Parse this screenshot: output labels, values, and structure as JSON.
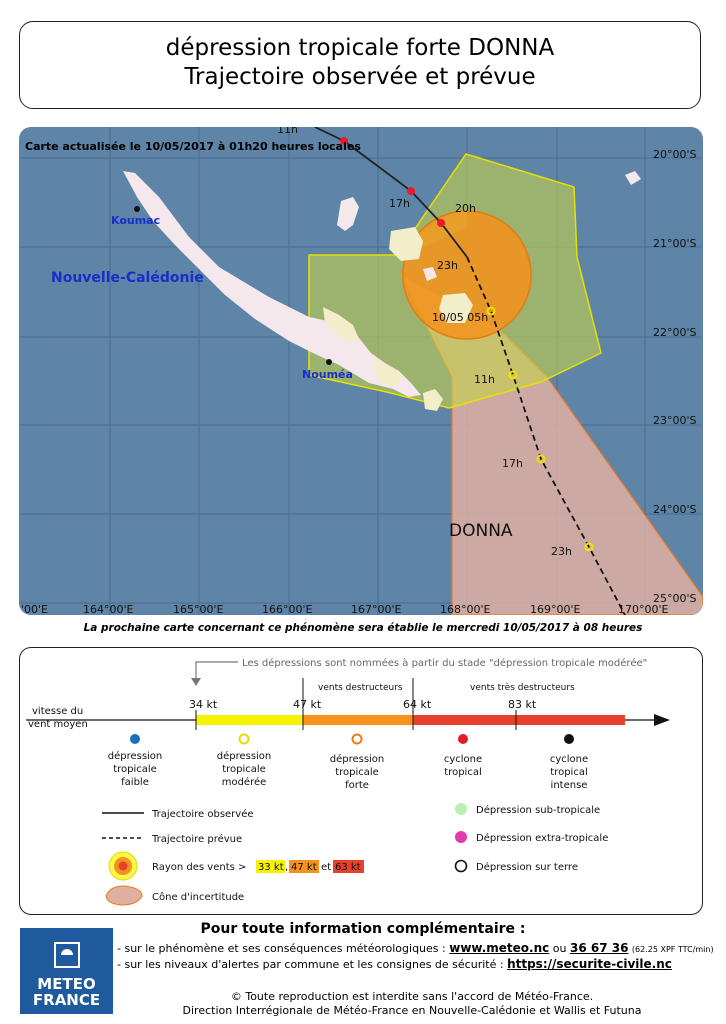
{
  "title": {
    "line1": "dépression tropicale forte DONNA",
    "line2": "Trajectoire observée et prévue"
  },
  "map": {
    "updated": "Carte actualisée le 10/05/2017 à 01h20 heures locales",
    "places": {
      "koumac": "Koumac",
      "nouvelle_caledonie": "Nouvelle-Calédonie",
      "noumea": "Nouméa"
    },
    "storm_name": "DONNA",
    "lat_labels": [
      "20°00'S",
      "21°00'S",
      "22°00'S",
      "23°00'S",
      "24°00'S",
      "25°00'S"
    ],
    "lon_labels": [
      "'00'E",
      "164°00'E",
      "165°00'E",
      "166°00'E",
      "167°00'E",
      "168°00'E",
      "169°00'E",
      "170°00'E"
    ],
    "observed_labels": [
      "11h",
      "17h",
      "20h",
      "23h"
    ],
    "forecast_labels": [
      "10/05 05h",
      "11h",
      "17h",
      "23h"
    ],
    "colors": {
      "sea": "#5e84a8",
      "land": "#f4e8ec",
      "reef": "#f2eec9",
      "grid": "#4a6d90",
      "cone": "#dfb0a2",
      "cone_edge": "#f07820",
      "ring34": "#f7f200",
      "ring47": "#f4921c",
      "observed_point": "#e8192c",
      "forecast_point": "#f2e400"
    }
  },
  "next_map": "La prochaine carte concernant ce phénomène sera établie le mercredi 10/05/2017 à 08 heures",
  "legend": {
    "naming_note": "Les dépressions sont nommées à partir du stade \"dépression tropicale modérée\"",
    "wind_speed": [
      "vitesse du",
      "vent moyen"
    ],
    "thresholds": [
      "34 kt",
      "47 kt",
      "64 kt",
      "83 kt"
    ],
    "destructive": "vents destructeurs",
    "very_destructive": "vents très destructeurs",
    "stages": [
      {
        "line1": "dépression",
        "line2": "tropicale",
        "line3": "faible",
        "icon": "blue-dot-icon"
      },
      {
        "line1": "dépression",
        "line2": "tropicale",
        "line3": "modérée",
        "icon": "yellow-storm-icon"
      },
      {
        "line1": "dépression",
        "line2": "tropicale",
        "line3": "forte",
        "icon": "orange-storm-icon"
      },
      {
        "line1": "cyclone",
        "line2": "tropical",
        "line3": "",
        "icon": "red-cyclone-icon"
      },
      {
        "line1": "cyclone",
        "line2": "tropical",
        "line3": "intense",
        "icon": "black-cyclone-icon"
      }
    ],
    "observed_track": "Trajectoire observée",
    "forecast_track": "Trajectoire prévue",
    "wind_radius": "Rayon des vents >",
    "radius_values": [
      "33 kt",
      "47 kt",
      "63 kt"
    ],
    "radius_sep": [
      "",
      ",",
      "et"
    ],
    "uncertainty_cone": "Cône d'incertitude",
    "subtropical": "Dépression sub-tropicale",
    "extratropical": "Dépression extra-tropicale",
    "overland": "Dépression sur terre"
  },
  "info": {
    "title": "Pour toute information complémentaire :",
    "line1_text": "- sur le phénomène et ses conséquences météorologiques :",
    "line1_link": "www.meteo.nc",
    "line1_or": "ou",
    "line1_phone": "36 67 36",
    "line1_price": "(62.25 XPF TTC/min)",
    "line2_text": "- sur les niveaux d'alertes par commune et les consignes de sécurité :",
    "line2_link": "https://securite-civile.nc",
    "footer1": "© Toute reproduction est interdite sans l'accord de Météo-France.",
    "footer2": "Direction Interrégionale de Météo-France en Nouvelle-Calédonie et Wallis et Futuna"
  },
  "logo": {
    "line1": "METEO",
    "line2": "FRANCE"
  }
}
